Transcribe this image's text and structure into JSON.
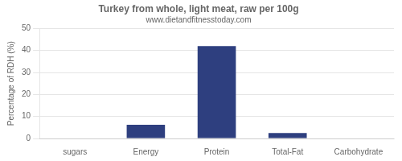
{
  "chart_data": {
    "type": "bar",
    "title": "Turkey from whole, light meat, raw per 100g",
    "subtitle": "www.dietandfitnesstoday.com",
    "y_label": "Percentage of RDH (%)",
    "categories": [
      "sugars",
      "Energy",
      "Protein",
      "Total-Fat",
      "Carbohydrate"
    ],
    "values": [
      0,
      6.2,
      42.0,
      2.5,
      0
    ],
    "color": "#2e3f7f",
    "ylim": [
      0,
      50
    ],
    "yticks": [
      0,
      10,
      20,
      30,
      40,
      50
    ],
    "grid": true
  }
}
